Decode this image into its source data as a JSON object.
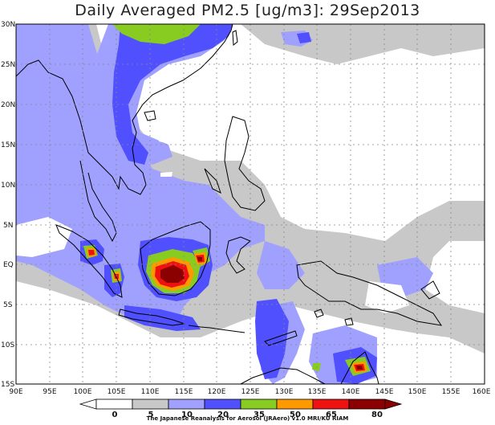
{
  "title": "Daily Averaged PM2.5 [ug/m3]: 29Sep2013",
  "lat_labels": [
    "30N",
    "25N",
    "20N",
    "15N",
    "10N",
    "5N",
    "EQ",
    "5S",
    "10S",
    "15S"
  ],
  "lon_labels": [
    "90E",
    "95E",
    "100E",
    "105E",
    "110E",
    "115E",
    "120E",
    "125E",
    "130E",
    "135E",
    "140E",
    "145E",
    "150E",
    "155E",
    "160E"
  ],
  "colorbar": {
    "labels": [
      "0",
      "5",
      "10",
      "20",
      "35",
      "50",
      "65",
      "80"
    ],
    "colors": [
      "#ffffff",
      "#c8c8c8",
      "#a0a0ff",
      "#5050ff",
      "#88cc22",
      "#ff9900",
      "#ee1111",
      "#8b0000"
    ]
  },
  "credit": "The Japanese Reanalysis for Aerosol (JRAero) v1.0 MRI/KU RIAM"
}
